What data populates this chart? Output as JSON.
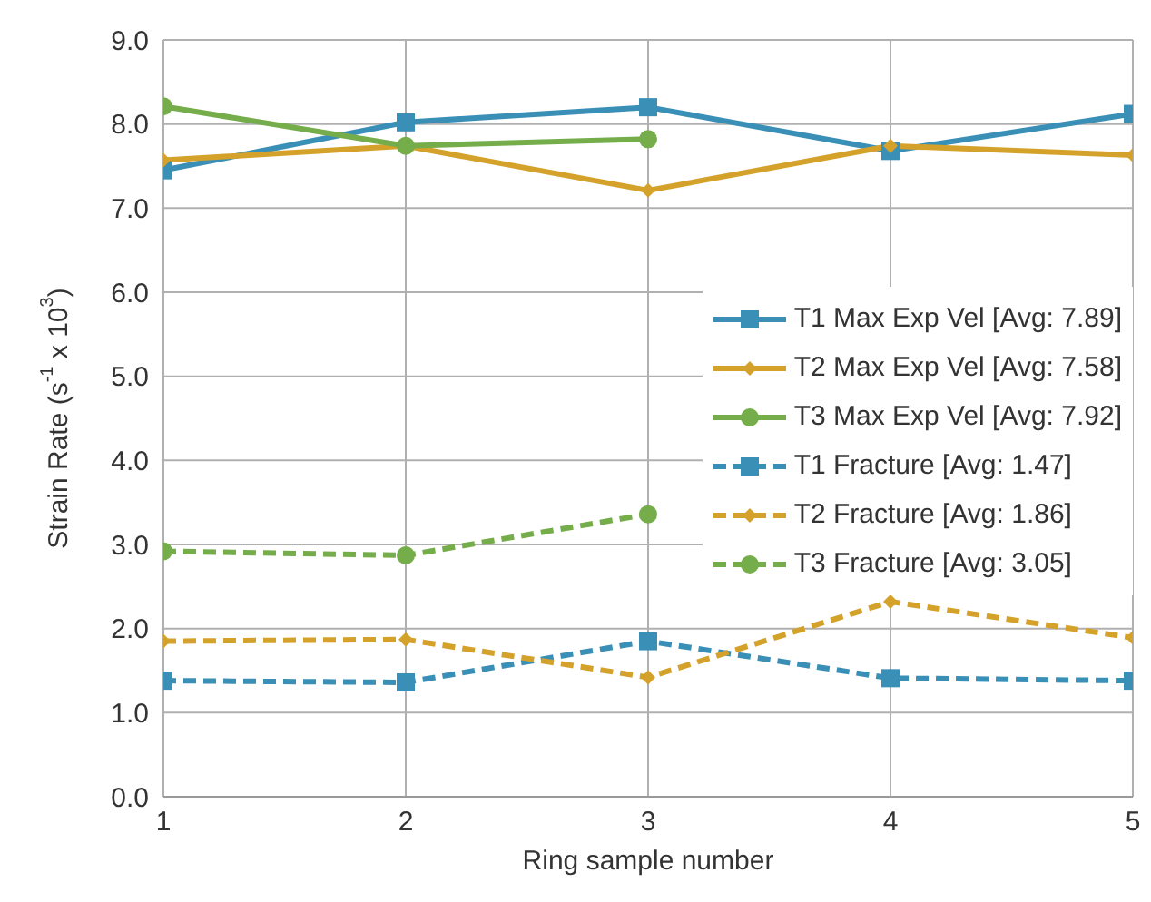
{
  "chart_data": {
    "type": "line",
    "xlabel": "Ring sample number",
    "ylabel": "Strain Rate (s$^{-1}$ x 10$^{3}$)",
    "x": [
      1,
      2,
      3,
      4,
      5
    ],
    "xlim": [
      1,
      5
    ],
    "xticks": [
      1,
      2,
      3,
      4,
      5
    ],
    "ylim": [
      0,
      9
    ],
    "yticks": [
      {
        "value": 0,
        "label": "0.0"
      },
      {
        "value": 1,
        "label": "1.0"
      },
      {
        "value": 2,
        "label": "2.0"
      },
      {
        "value": 3,
        "label": "3.0"
      },
      {
        "value": 4,
        "label": "4.0"
      },
      {
        "value": 5,
        "label": "5.0"
      },
      {
        "value": 6,
        "label": "6.0"
      },
      {
        "value": 7,
        "label": "7.0"
      },
      {
        "value": 8,
        "label": "8.0"
      },
      {
        "value": 9,
        "label": "9.0"
      }
    ],
    "grid": true,
    "legend": "right",
    "series": [
      {
        "name": "T1 Max Exp Vel [Avg: 7.89]",
        "color": "#3a8fb7",
        "marker": "square",
        "line_style": "solid",
        "values": [
          7.45,
          8.02,
          8.2,
          7.68,
          8.12
        ]
      },
      {
        "name": "T2 Max Exp Vel [Avg: 7.58]",
        "color": "#d4a22a",
        "marker": "diamond",
        "line_style": "solid",
        "values": [
          7.57,
          7.74,
          7.21,
          7.74,
          7.63
        ]
      },
      {
        "name": "T3 Max Exp Vel [Avg: 7.92]",
        "color": "#74ad4a",
        "marker": "circle",
        "line_style": "solid",
        "values": [
          8.21,
          7.74,
          7.82,
          null,
          null
        ]
      },
      {
        "name": "T1 Fracture [Avg: 1.47]",
        "color": "#3a8fb7",
        "marker": "square",
        "line_style": "dashed",
        "values": [
          1.38,
          1.36,
          1.85,
          1.41,
          1.38
        ]
      },
      {
        "name": "T2 Fracture [Avg: 1.86]",
        "color": "#d4a22a",
        "marker": "diamond",
        "line_style": "dashed",
        "values": [
          1.85,
          1.87,
          1.42,
          2.32,
          1.89
        ]
      },
      {
        "name": "T3 Fracture [Avg: 3.05]",
        "color": "#74ad4a",
        "marker": "circle",
        "line_style": "dashed",
        "values": [
          2.92,
          2.87,
          3.36,
          null,
          null
        ]
      }
    ]
  }
}
